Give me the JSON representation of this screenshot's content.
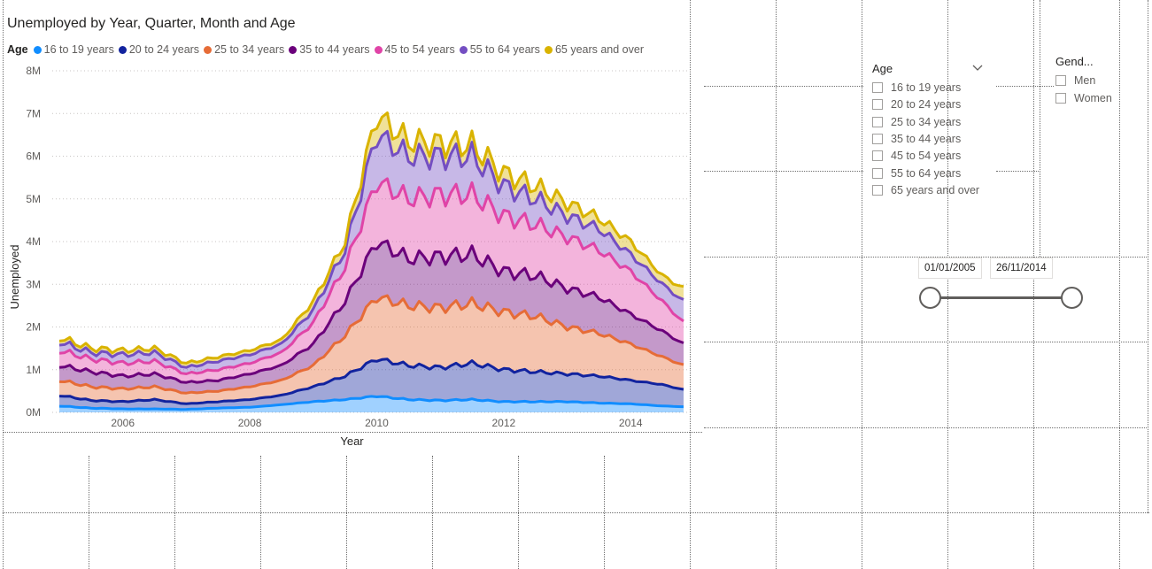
{
  "chart_data": {
    "type": "area",
    "stacked": true,
    "title": "Unemployed by Year, Quarter, Month and Age",
    "legend_title": "Age",
    "legend_position": "top-left",
    "xlabel": "Year",
    "ylabel": "Unemployed",
    "x_ticks": [
      2006,
      2008,
      2010,
      2012,
      2014
    ],
    "y_ticks": [
      "0M",
      "1M",
      "2M",
      "3M",
      "4M",
      "5M",
      "6M",
      "7M",
      "8M"
    ],
    "ylim": [
      0,
      8000000
    ],
    "xlim": [
      "2005-01",
      "2014-11"
    ],
    "grid": true,
    "series_meta": [
      {
        "name": "16 to 19 years",
        "color": "#118DFF"
      },
      {
        "name": "20 to 24 years",
        "color": "#12239E"
      },
      {
        "name": "25 to 34 years",
        "color": "#E66C37"
      },
      {
        "name": "35 to 44 years",
        "color": "#6B007B"
      },
      {
        "name": "45 to 54 years",
        "color": "#E044A7"
      },
      {
        "name": "55 to 64 years",
        "color": "#744EC2"
      },
      {
        "name": "65 years and over",
        "color": "#D9B300"
      }
    ],
    "cumulative_totals_millions": {
      "x": [
        "2005-01",
        "2005-07",
        "2006-01",
        "2006-07",
        "2007-01",
        "2007-07",
        "2008-01",
        "2008-07",
        "2009-01",
        "2009-07",
        "2010-01",
        "2010-07",
        "2011-01",
        "2011-07",
        "2012-01",
        "2012-07",
        "2013-01",
        "2013-07",
        "2014-01",
        "2014-07",
        "2014-11"
      ],
      "16 to 19 years": [
        0.15,
        0.1,
        0.08,
        0.08,
        0.07,
        0.1,
        0.12,
        0.18,
        0.25,
        0.3,
        0.38,
        0.3,
        0.28,
        0.3,
        0.25,
        0.25,
        0.25,
        0.22,
        0.2,
        0.15,
        0.13
      ],
      "20 to 24 years": [
        0.4,
        0.28,
        0.25,
        0.3,
        0.2,
        0.25,
        0.3,
        0.4,
        0.6,
        0.85,
        1.25,
        1.1,
        1.05,
        1.15,
        1.0,
        0.95,
        0.9,
        0.85,
        0.75,
        0.65,
        0.53
      ],
      "25 to 34 years": [
        0.75,
        0.6,
        0.55,
        0.6,
        0.45,
        0.5,
        0.6,
        0.75,
        1.1,
        1.8,
        2.7,
        2.5,
        2.45,
        2.55,
        2.35,
        2.25,
        2.0,
        1.85,
        1.6,
        1.3,
        1.1
      ],
      "35 to 44 years": [
        1.1,
        0.95,
        0.85,
        0.9,
        0.7,
        0.75,
        0.9,
        1.1,
        1.6,
        2.6,
        4.0,
        3.6,
        3.65,
        3.7,
        3.3,
        3.2,
        2.9,
        2.7,
        2.3,
        1.9,
        1.6
      ],
      "45 to 54 years": [
        1.45,
        1.25,
        1.15,
        1.2,
        0.9,
        1.0,
        1.15,
        1.4,
        2.1,
        3.4,
        5.4,
        5.0,
        5.1,
        5.1,
        4.6,
        4.4,
        4.1,
        3.8,
        3.3,
        2.6,
        2.1
      ],
      "55 to 64 years": [
        1.65,
        1.4,
        1.35,
        1.4,
        1.05,
        1.2,
        1.35,
        1.6,
        2.4,
        3.8,
        6.5,
        6.0,
        6.0,
        6.0,
        5.3,
        5.0,
        4.6,
        4.3,
        3.7,
        3.0,
        2.6
      ],
      "65 years and over": [
        1.75,
        1.5,
        1.45,
        1.5,
        1.15,
        1.3,
        1.45,
        1.7,
        2.6,
        4.0,
        6.95,
        6.35,
        6.3,
        6.25,
        5.6,
        5.3,
        4.9,
        4.55,
        4.0,
        3.2,
        2.9
      ]
    }
  },
  "age_slicer": {
    "title": "Age",
    "items": [
      "16 to 19 years",
      "20 to 24 years",
      "25 to 34 years",
      "35 to 44 years",
      "45 to 54 years",
      "55 to 64 years",
      "65 years and over"
    ]
  },
  "gender_slicer": {
    "title": "Gend...",
    "items": [
      "Men",
      "Women"
    ]
  },
  "date_slicer": {
    "start": "01/01/2005",
    "end": "26/11/2014"
  }
}
